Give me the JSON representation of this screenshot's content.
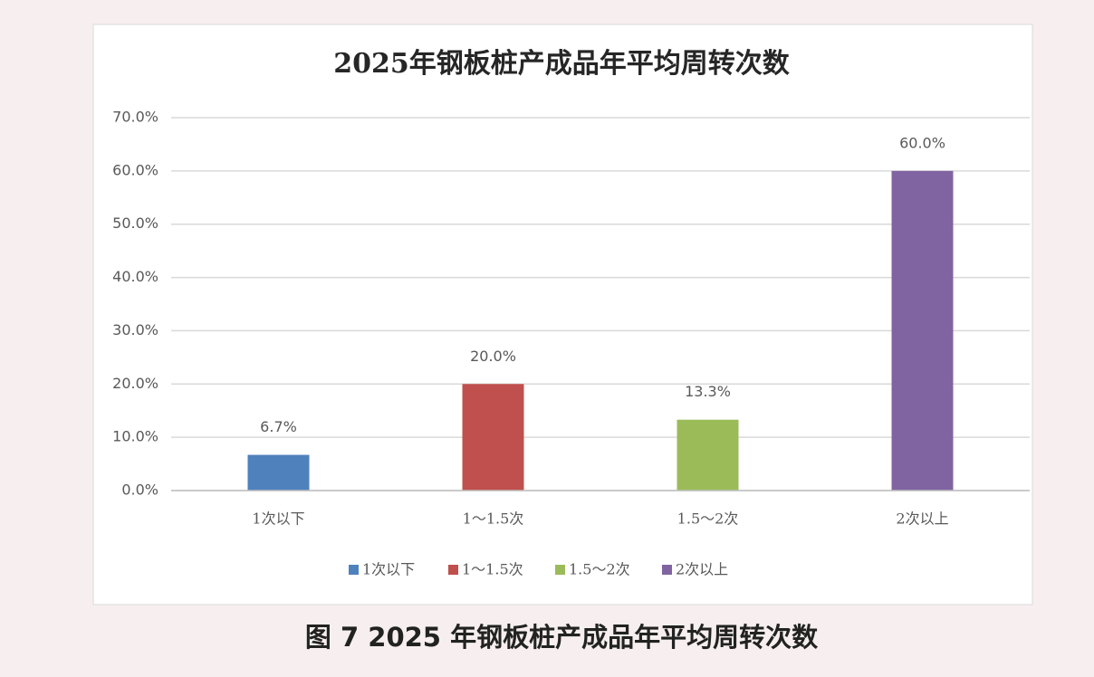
{
  "chart_data": {
    "type": "bar",
    "title": "2025年钢板桩产成品年平均周转次数",
    "categories": [
      "1次以下",
      "1～1.5次",
      "1.5～2次",
      "2次以上"
    ],
    "values": [
      6.7,
      20.0,
      13.3,
      60.0
    ],
    "value_labels": [
      "6.7%",
      "20.0%",
      "13.3%",
      "60.0%"
    ],
    "colors": [
      "#4f81bd",
      "#c0504d",
      "#9bbb59",
      "#8064a2"
    ],
    "ylim": [
      0,
      70
    ],
    "yticks": [
      {
        "value": 0,
        "label": "0.0%"
      },
      {
        "value": 10,
        "label": "10.0%"
      },
      {
        "value": 20,
        "label": "20.0%"
      },
      {
        "value": 30,
        "label": "30.0%"
      },
      {
        "value": 40,
        "label": "40.0%"
      },
      {
        "value": 50,
        "label": "50.0%"
      },
      {
        "value": 60,
        "label": "60.0%"
      },
      {
        "value": 70,
        "label": "70.0%"
      }
    ],
    "grid": true,
    "legend": "bottom",
    "caption": "图 7 2025 年钢板桩产成品年平均周转次数"
  }
}
